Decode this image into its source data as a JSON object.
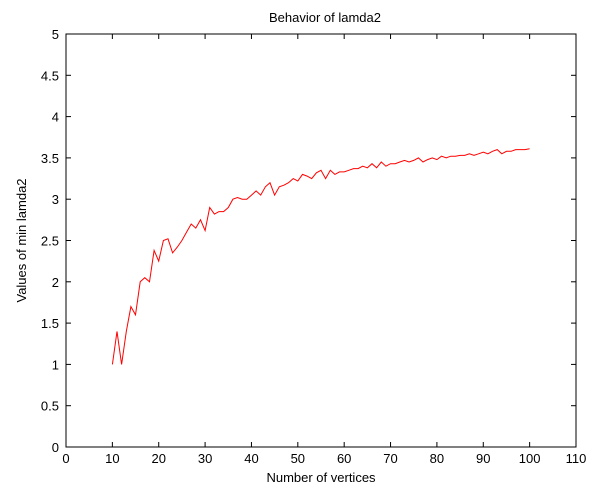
{
  "chart_data": {
    "type": "line",
    "title": "Behavior of lamda2",
    "xlabel": "Number of vertices",
    "ylabel": "Values of min lamda2",
    "xlim": [
      0,
      110
    ],
    "ylim": [
      0,
      5
    ],
    "xticks": [
      0,
      10,
      20,
      30,
      40,
      50,
      60,
      70,
      80,
      90,
      100,
      110
    ],
    "yticks": [
      0,
      0.5,
      1,
      1.5,
      2,
      2.5,
      3,
      3.5,
      4,
      4.5,
      5
    ],
    "ytick_labels": [
      "0",
      "0.5",
      "1",
      "1.5",
      "2",
      "2.5",
      "3",
      "3.5",
      "4",
      "4.5",
      "5"
    ],
    "grid": false,
    "series": [
      {
        "color": "#ff0000",
        "x": [
          10,
          11,
          12,
          13,
          14,
          15,
          16,
          17,
          18,
          19,
          20,
          21,
          22,
          23,
          24,
          25,
          26,
          27,
          28,
          29,
          30,
          31,
          32,
          33,
          34,
          35,
          36,
          37,
          38,
          39,
          40,
          41,
          42,
          43,
          44,
          45,
          46,
          47,
          48,
          49,
          50,
          51,
          52,
          53,
          54,
          55,
          56,
          57,
          58,
          59,
          60,
          61,
          62,
          63,
          64,
          65,
          66,
          67,
          68,
          69,
          70,
          71,
          72,
          73,
          74,
          75,
          76,
          77,
          78,
          79,
          80,
          81,
          82,
          83,
          84,
          85,
          86,
          87,
          88,
          89,
          90,
          91,
          92,
          93,
          94,
          95,
          96,
          97,
          98,
          99,
          100
        ],
        "y": [
          1.0,
          1.4,
          1.0,
          1.4,
          1.7,
          1.6,
          2.0,
          2.05,
          2.0,
          2.38,
          2.25,
          2.5,
          2.52,
          2.35,
          2.42,
          2.5,
          2.6,
          2.7,
          2.65,
          2.75,
          2.62,
          2.9,
          2.82,
          2.85,
          2.85,
          2.9,
          3.0,
          3.02,
          3.0,
          3.0,
          3.05,
          3.1,
          3.05,
          3.15,
          3.2,
          3.05,
          3.15,
          3.17,
          3.2,
          3.25,
          3.22,
          3.3,
          3.28,
          3.25,
          3.32,
          3.35,
          3.25,
          3.35,
          3.3,
          3.33,
          3.33,
          3.35,
          3.37,
          3.37,
          3.4,
          3.38,
          3.43,
          3.38,
          3.45,
          3.4,
          3.43,
          3.43,
          3.45,
          3.47,
          3.45,
          3.47,
          3.5,
          3.45,
          3.48,
          3.5,
          3.48,
          3.52,
          3.5,
          3.52,
          3.52,
          3.53,
          3.53,
          3.55,
          3.53,
          3.55,
          3.57,
          3.55,
          3.58,
          3.6,
          3.55,
          3.58,
          3.58,
          3.6,
          3.6,
          3.6,
          3.61
        ]
      }
    ]
  }
}
